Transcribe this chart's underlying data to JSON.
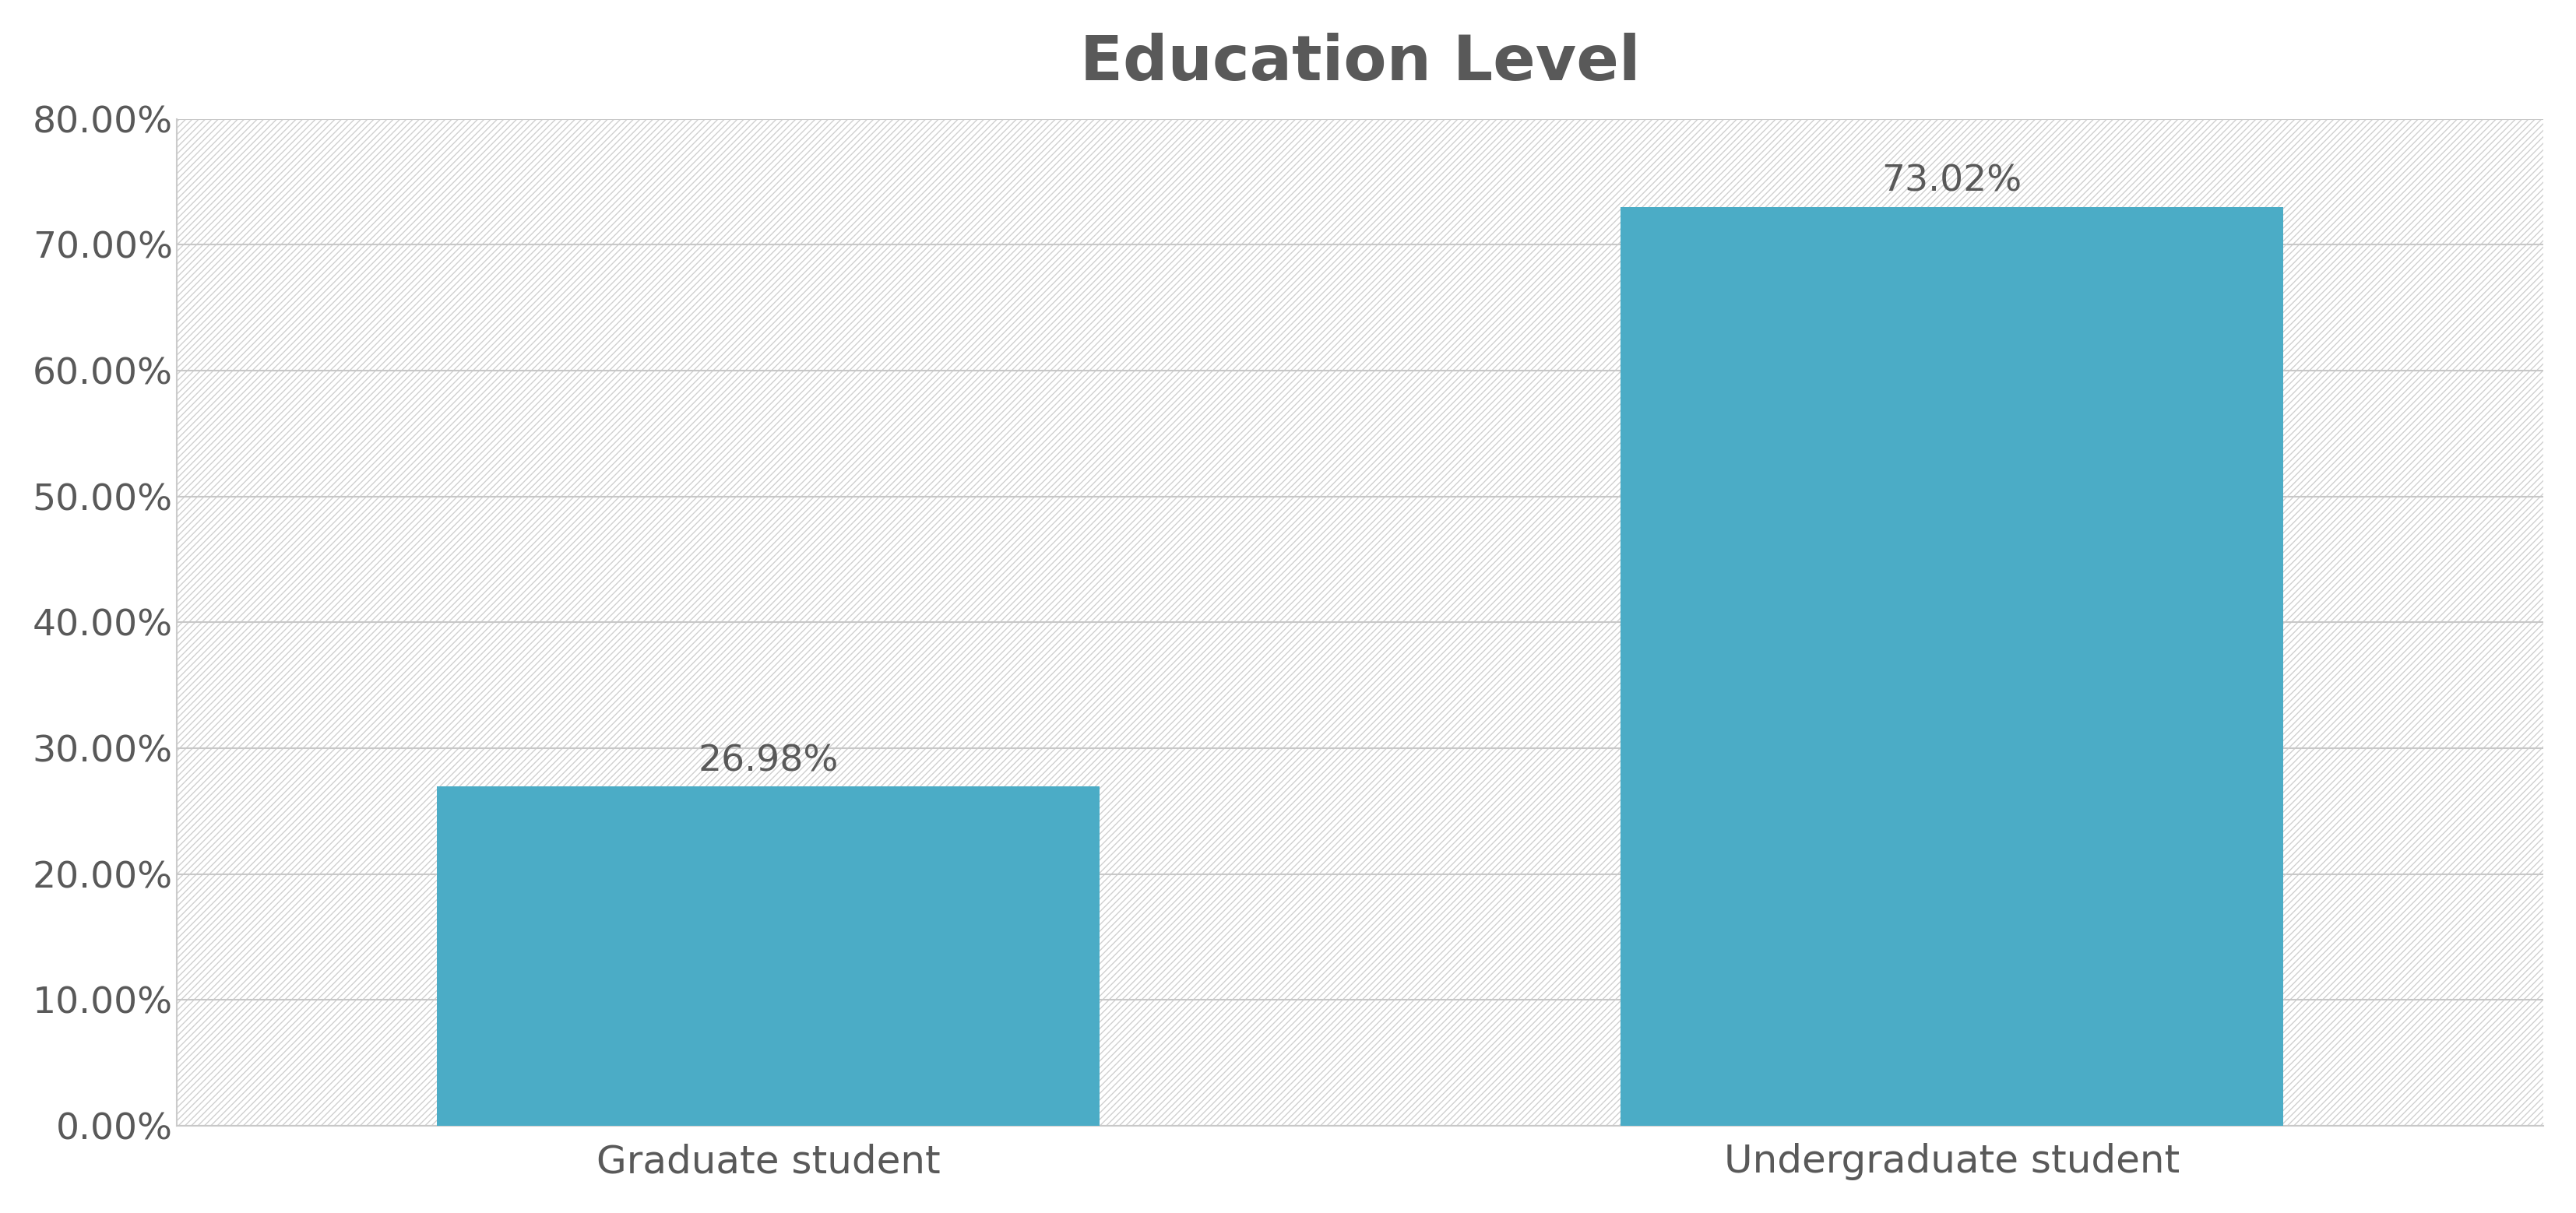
{
  "title": "Education Level",
  "categories": [
    "Graduate student",
    "Undergraduate student"
  ],
  "values": [
    26.98,
    73.02
  ],
  "bar_color": "#4BACC6",
  "bar_width": 0.28,
  "ylim": [
    0,
    80
  ],
  "yticks": [
    0,
    10,
    20,
    30,
    40,
    50,
    60,
    70,
    80
  ],
  "title_fontsize": 58,
  "tick_fontsize": 34,
  "label_fontsize": 36,
  "annotation_fontsize": 34,
  "background_color": "#ffffff",
  "plot_bg_color": "#ffffff",
  "grid_color": "#c8c8c8",
  "spine_color": "#cccccc",
  "title_color": "#595959",
  "tick_color": "#595959",
  "hatch_color": "#d0d0d0",
  "x_positions": [
    0.25,
    0.75
  ],
  "xlim": [
    0.0,
    1.0
  ]
}
